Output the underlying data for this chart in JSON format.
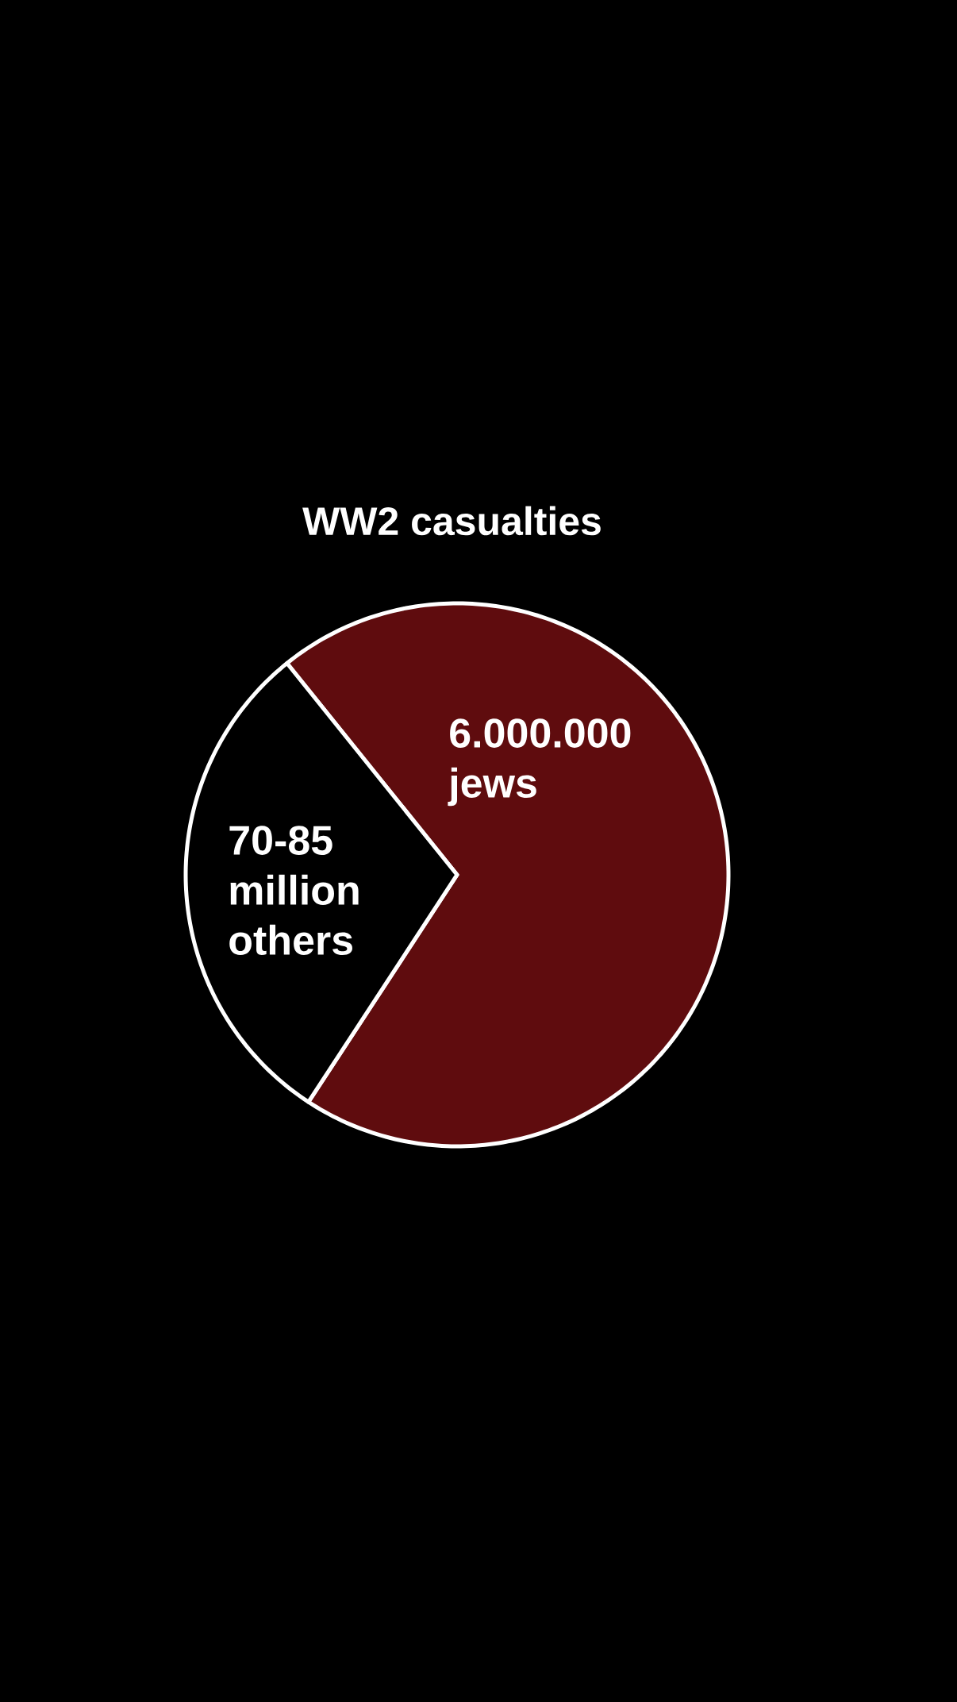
{
  "chart_data": {
    "type": "pie",
    "title": "WW2 casualties",
    "categories": [
      "6.000.000 jews",
      "70-85 million others"
    ],
    "values": [
      70,
      30
    ],
    "colors": [
      "#5f0c0e",
      "#000000"
    ]
  }
}
